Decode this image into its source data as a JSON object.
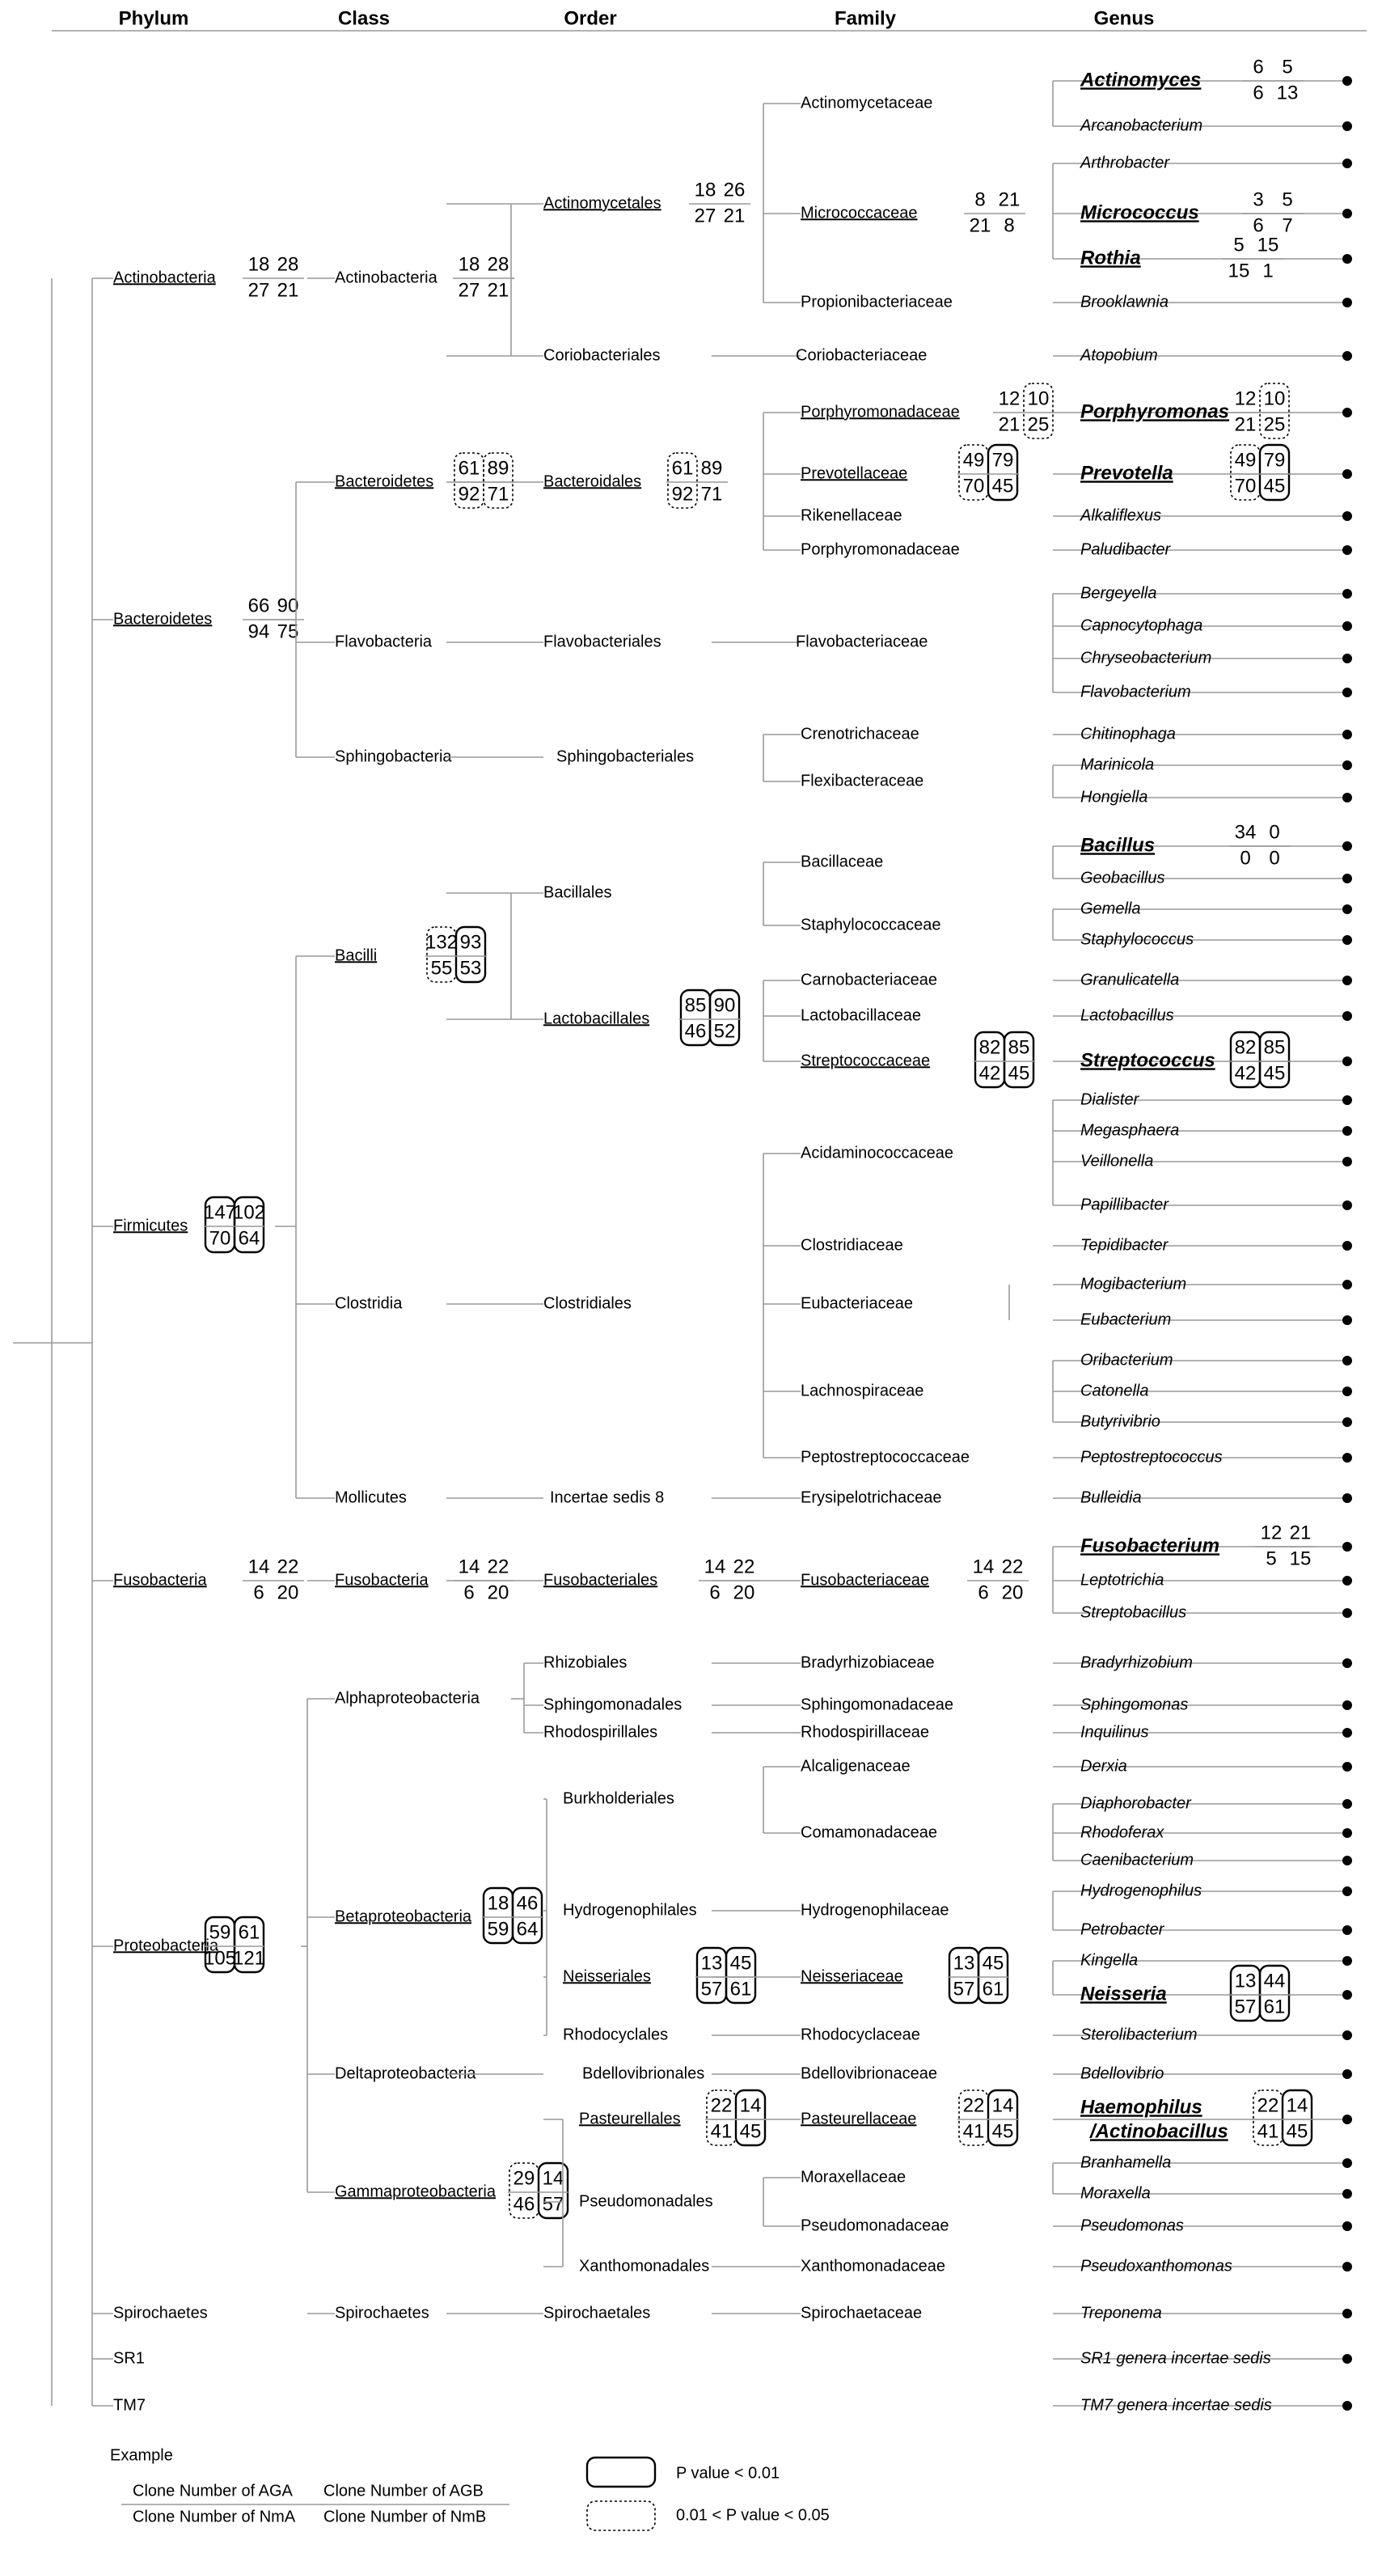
{
  "headers": [
    "Phylum",
    "Class",
    "Order",
    "Family",
    "Genus"
  ],
  "phyla": [
    {
      "key": "act",
      "label": "Actinobacteria",
      "ul": true,
      "nums": {
        "a": [
          "18",
          "27"
        ],
        "b": [
          "28",
          "21"
        ]
      }
    },
    {
      "key": "bac",
      "label": "Bacteroidetes",
      "ul": true,
      "nums": {
        "a": [
          "66",
          "94"
        ],
        "b": [
          "90",
          "75"
        ]
      }
    },
    {
      "key": "fir",
      "label": "Firmicutes",
      "ul": true,
      "nums": {
        "a": [
          "147",
          "70"
        ],
        "b": [
          "102",
          "64"
        ],
        "boxA": "solid",
        "boxB": "solid"
      }
    },
    {
      "key": "fus",
      "label": "Fusobacteria",
      "ul": true,
      "nums": {
        "a": [
          "14",
          "6"
        ],
        "b": [
          "22",
          "20"
        ]
      }
    },
    {
      "key": "pro",
      "label": "Proteobacteria",
      "ul": true,
      "nums": {
        "a": [
          "59",
          "105"
        ],
        "b": [
          "61",
          "121"
        ],
        "boxA": "solid",
        "boxB": "solid"
      }
    },
    {
      "key": "spi",
      "label": "Spirochaetes",
      "ul": false
    },
    {
      "key": "sr1",
      "label": "SR1",
      "ul": false
    },
    {
      "key": "tm7",
      "label": "TM7",
      "ul": false
    }
  ],
  "classes": [
    {
      "key": "c_act",
      "label": "Actinobacteria",
      "ul": false,
      "nums": {
        "a": [
          "18",
          "27"
        ],
        "b": [
          "28",
          "21"
        ]
      }
    },
    {
      "key": "c_bac",
      "label": "Bacteroidetes",
      "ul": true,
      "nums": {
        "a": [
          "61",
          "92"
        ],
        "b": [
          "89",
          "71"
        ],
        "boxA": "dashed",
        "boxB": "dashed"
      }
    },
    {
      "key": "c_fla",
      "label": "Flavobacteria",
      "ul": false
    },
    {
      "key": "c_sph",
      "label": "Sphingobacteria",
      "ul": false
    },
    {
      "key": "c_bci",
      "label": "Bacilli",
      "ul": true,
      "nums": {
        "a": [
          "132",
          "55"
        ],
        "b": [
          "93",
          "53"
        ],
        "boxA": "dashed",
        "boxB": "solid"
      }
    },
    {
      "key": "c_clo",
      "label": "Clostridia",
      "ul": false
    },
    {
      "key": "c_mol",
      "label": "Mollicutes",
      "ul": false
    },
    {
      "key": "c_fus",
      "label": "Fusobacteria",
      "ul": true,
      "nums": {
        "a": [
          "14",
          "6"
        ],
        "b": [
          "22",
          "20"
        ]
      }
    },
    {
      "key": "c_alp",
      "label": "Alphaproteobacteria",
      "ul": false
    },
    {
      "key": "c_bet",
      "label": "Betaproteobacteria",
      "ul": true,
      "nums": {
        "a": [
          "18",
          "59"
        ],
        "b": [
          "46",
          "64"
        ],
        "boxA": "solid",
        "boxB": "solid"
      }
    },
    {
      "key": "c_del",
      "label": "Deltaproteobacteria",
      "ul": false
    },
    {
      "key": "c_gam",
      "label": "Gammaproteobacteria",
      "ul": true,
      "nums": {
        "a": [
          "29",
          "46"
        ],
        "b": [
          "14",
          "57"
        ],
        "boxA": "dashed",
        "boxB": "solid"
      }
    },
    {
      "key": "c_spi",
      "label": "Spirochaetes",
      "ul": false
    }
  ],
  "orders": [
    {
      "key": "o_actm",
      "label": "Actinomycetales",
      "ul": true,
      "nums": {
        "a": [
          "18",
          "27"
        ],
        "b": [
          "26",
          "21"
        ]
      }
    },
    {
      "key": "o_cori",
      "label": "Coriobacteriales",
      "ul": false
    },
    {
      "key": "o_bact",
      "label": "Bacteroidales",
      "ul": true,
      "nums": {
        "a": [
          "61",
          "92"
        ],
        "b": [
          "89",
          "71"
        ],
        "boxA": "dashed"
      }
    },
    {
      "key": "o_flav",
      "label": "Flavobacteriales",
      "ul": false
    },
    {
      "key": "o_sphi",
      "label": "Sphingobacteriales",
      "ul": false
    },
    {
      "key": "o_baci",
      "label": "Bacillales",
      "ul": false
    },
    {
      "key": "o_lact",
      "label": "Lactobacillales",
      "ul": true,
      "nums": {
        "a": [
          "85",
          "46"
        ],
        "b": [
          "90",
          "52"
        ],
        "boxA": "solid",
        "boxB": "solid"
      }
    },
    {
      "key": "o_clos",
      "label": "Clostridiales",
      "ul": false
    },
    {
      "key": "o_ince",
      "label": "Incertae sedis 8",
      "ul": false
    },
    {
      "key": "o_fuso",
      "label": "Fusobacteriales",
      "ul": true,
      "nums": {
        "a": [
          "14",
          "6"
        ],
        "b": [
          "22",
          "20"
        ]
      }
    },
    {
      "key": "o_rhiz",
      "label": "Rhizobiales",
      "ul": false
    },
    {
      "key": "o_sphm",
      "label": "Sphingomonadales",
      "ul": false
    },
    {
      "key": "o_rhod",
      "label": "Rhodospirillales",
      "ul": false
    },
    {
      "key": "o_burk",
      "label": "Burkholderiales",
      "ul": false
    },
    {
      "key": "o_hydr",
      "label": "Hydrogenophilales",
      "ul": false
    },
    {
      "key": "o_neis",
      "label": "Neisseriales",
      "ul": true,
      "nums": {
        "a": [
          "13",
          "57"
        ],
        "b": [
          "45",
          "61"
        ],
        "boxA": "solid",
        "boxB": "solid"
      }
    },
    {
      "key": "o_rhoc",
      "label": "Rhodocyclales",
      "ul": false
    },
    {
      "key": "o_bdel",
      "label": "Bdellovibrionales",
      "ul": false
    },
    {
      "key": "o_past",
      "label": "Pasteurellales",
      "ul": true,
      "nums": {
        "a": [
          "22",
          "41"
        ],
        "b": [
          "14",
          "45"
        ],
        "boxA": "dashed",
        "boxB": "solid"
      }
    },
    {
      "key": "o_pseu",
      "label": "Pseudomonadales",
      "ul": false
    },
    {
      "key": "o_xant",
      "label": "Xanthomonadales",
      "ul": false
    },
    {
      "key": "o_spir",
      "label": "Spirochaetales",
      "ul": false
    }
  ],
  "families": [
    {
      "key": "f_actm",
      "label": "Actinomycetaceae",
      "ul": false
    },
    {
      "key": "f_micr",
      "label": "Micrococcaceae",
      "ul": true,
      "nums": {
        "a": [
          "8",
          "21"
        ],
        "b": [
          "21",
          "8"
        ]
      }
    },
    {
      "key": "f_prop",
      "label": "Propionibacteriaceae",
      "ul": false
    },
    {
      "key": "f_cori",
      "label": "Coriobacteriaceae",
      "ul": false
    },
    {
      "key": "f_porA",
      "label": "Porphyromonadaceae",
      "ul": true,
      "nums": {
        "a": [
          "12",
          "21"
        ],
        "b": [
          "10",
          "25"
        ],
        "boxB": "dashed"
      }
    },
    {
      "key": "f_prev",
      "label": "Prevotellaceae",
      "ul": true,
      "nums": {
        "a": [
          "49",
          "70"
        ],
        "b": [
          "79",
          "45"
        ],
        "boxA": "dashed",
        "boxB": "solid"
      }
    },
    {
      "key": "f_rike",
      "label": "Rikenellaceae",
      "ul": false
    },
    {
      "key": "f_porB",
      "label": "Porphyromonadaceae",
      "ul": false
    },
    {
      "key": "f_flav",
      "label": "Flavobacteriaceae",
      "ul": false
    },
    {
      "key": "f_cren",
      "label": "Crenotrichaceae",
      "ul": false
    },
    {
      "key": "f_flex",
      "label": "Flexibacteraceae",
      "ul": false
    },
    {
      "key": "f_baci",
      "label": "Bacillaceae",
      "ul": false
    },
    {
      "key": "f_stap",
      "label": "Staphylococcaceae",
      "ul": false
    },
    {
      "key": "f_carn",
      "label": "Carnobacteriaceae",
      "ul": false
    },
    {
      "key": "f_lact",
      "label": "Lactobacillaceae",
      "ul": false
    },
    {
      "key": "f_stre",
      "label": "Streptococcaceae",
      "ul": true,
      "nums": {
        "a": [
          "82",
          "42"
        ],
        "b": [
          "85",
          "45"
        ],
        "boxA": "solid",
        "boxB": "solid"
      }
    },
    {
      "key": "f_acid",
      "label": "Acidaminococcaceae",
      "ul": false
    },
    {
      "key": "f_clos",
      "label": "Clostridiaceae",
      "ul": false
    },
    {
      "key": "f_euba",
      "label": "Eubacteriaceae",
      "ul": false
    },
    {
      "key": "f_lach",
      "label": "Lachnospiraceae",
      "ul": false
    },
    {
      "key": "f_pept",
      "label": "Peptostreptococcaceae",
      "ul": false
    },
    {
      "key": "f_erys",
      "label": "Erysipelotrichaceae",
      "ul": false
    },
    {
      "key": "f_fuso",
      "label": "Fusobacteriaceae",
      "ul": true,
      "nums": {
        "a": [
          "14",
          "6"
        ],
        "b": [
          "22",
          "20"
        ]
      }
    },
    {
      "key": "f_brad",
      "label": "Bradyrhizobiaceae",
      "ul": false
    },
    {
      "key": "f_sphm",
      "label": "Sphingomonadaceae",
      "ul": false
    },
    {
      "key": "f_rhod",
      "label": "Rhodospirillaceae",
      "ul": false
    },
    {
      "key": "f_alca",
      "label": "Alcaligenaceae",
      "ul": false
    },
    {
      "key": "f_coma",
      "label": "Comamonadaceae",
      "ul": false
    },
    {
      "key": "f_hydr",
      "label": "Hydrogenophilaceae",
      "ul": false
    },
    {
      "key": "f_neis",
      "label": "Neisseriaceae",
      "ul": true,
      "nums": {
        "a": [
          "13",
          "57"
        ],
        "b": [
          "45",
          "61"
        ],
        "boxA": "solid",
        "boxB": "solid"
      }
    },
    {
      "key": "f_rhoc",
      "label": "Rhodocyclaceae",
      "ul": false
    },
    {
      "key": "f_bdel",
      "label": "Bdellovibrionaceae",
      "ul": false
    },
    {
      "key": "f_past",
      "label": "Pasteurellaceae",
      "ul": true,
      "nums": {
        "a": [
          "22",
          "41"
        ],
        "b": [
          "14",
          "45"
        ],
        "boxA": "dashed",
        "boxB": "solid"
      }
    },
    {
      "key": "f_mora",
      "label": "Moraxellaceae",
      "ul": false
    },
    {
      "key": "f_pseu",
      "label": "Pseudomonadaceae",
      "ul": false
    },
    {
      "key": "f_xant",
      "label": "Xanthomonadaceae",
      "ul": false
    },
    {
      "key": "f_spir",
      "label": "Spirochaetaceae",
      "ul": false
    }
  ],
  "genera": [
    {
      "label": "Actinomyces",
      "bold": true,
      "nums": {
        "a": [
          "6",
          "6"
        ],
        "b": [
          "5",
          "13"
        ]
      }
    },
    {
      "label": "Arcanobacterium"
    },
    {
      "label": "Arthrobacter"
    },
    {
      "label": "Micrococcus",
      "bold": true,
      "nums": {
        "a": [
          "3",
          "6"
        ],
        "b": [
          "5",
          "7"
        ]
      }
    },
    {
      "label": "Rothia",
      "bold": true,
      "nums": {
        "a": [
          "5",
          "15"
        ],
        "b": [
          "15",
          "1"
        ]
      }
    },
    {
      "label": "Brooklawnia"
    },
    {
      "label": "Atopobium"
    },
    {
      "label": "Porphyromonas",
      "bold": true,
      "nums": {
        "a": [
          "12",
          "21"
        ],
        "b": [
          "10",
          "25"
        ],
        "boxB": "dashed"
      }
    },
    {
      "label": "Prevotella",
      "bold": true,
      "nums": {
        "a": [
          "49",
          "70"
        ],
        "b": [
          "79",
          "45"
        ],
        "boxA": "dashed",
        "boxB": "solid"
      }
    },
    {
      "label": "Alkaliflexus"
    },
    {
      "label": "Paludibacter"
    },
    {
      "label": "Bergeyella"
    },
    {
      "label": "Capnocytophaga"
    },
    {
      "label": "Chryseobacterium"
    },
    {
      "label": "Flavobacterium"
    },
    {
      "label": "Chitinophaga"
    },
    {
      "label": "Marinicola"
    },
    {
      "label": "Hongiella"
    },
    {
      "label": "Bacillus",
      "bold": true,
      "nums": {
        "a": [
          "34",
          "0"
        ],
        "b": [
          "0",
          "0"
        ]
      }
    },
    {
      "label": "Geobacillus"
    },
    {
      "label": "Gemella"
    },
    {
      "label": "Staphylococcus"
    },
    {
      "label": "Granulicatella"
    },
    {
      "label": "Lactobacillus"
    },
    {
      "label": "Streptococcus",
      "bold": true,
      "nums": {
        "a": [
          "82",
          "42"
        ],
        "b": [
          "85",
          "45"
        ],
        "boxA": "solid",
        "boxB": "solid"
      }
    },
    {
      "label": "Dialister"
    },
    {
      "label": "Megasphaera"
    },
    {
      "label": "Veillonella"
    },
    {
      "label": "Papillibacter"
    },
    {
      "label": "Tepidibacter"
    },
    {
      "label": "Mogibacterium"
    },
    {
      "label": "Eubacterium"
    },
    {
      "label": "Oribacterium"
    },
    {
      "label": "Catonella"
    },
    {
      "label": "Butyrivibrio"
    },
    {
      "label": "Peptostreptococcus"
    },
    {
      "label": "Bulleidia"
    },
    {
      "label": "Fusobacterium",
      "bold": true,
      "nums": {
        "a": [
          "12",
          "5"
        ],
        "b": [
          "21",
          "15"
        ]
      }
    },
    {
      "label": "Leptotrichia"
    },
    {
      "label": "Streptobacillus"
    },
    {
      "label": "Bradyrhizobium"
    },
    {
      "label": "Sphingomonas"
    },
    {
      "label": "Inquilinus"
    },
    {
      "label": "Derxia"
    },
    {
      "label": "Diaphorobacter"
    },
    {
      "label": "Rhodoferax"
    },
    {
      "label": "Caenibacterium"
    },
    {
      "label": "Hydrogenophilus"
    },
    {
      "label": "Petrobacter"
    },
    {
      "label": "Kingella"
    },
    {
      "label": "Neisseria",
      "bold": true,
      "nums": {
        "a": [
          "13",
          "57"
        ],
        "b": [
          "44",
          "61"
        ],
        "boxA": "solid",
        "boxB": "solid"
      }
    },
    {
      "label": "Sterolibacterium"
    },
    {
      "label": "Bdellovibrio"
    },
    {
      "label": "Haemophilus",
      "label2": "/Actinobacillus",
      "bold": true,
      "nums": {
        "a": [
          "22",
          "41"
        ],
        "b": [
          "14",
          "45"
        ],
        "boxA": "dashed",
        "boxB": "solid"
      }
    },
    {
      "label": "Branhamella"
    },
    {
      "label": "Moraxella"
    },
    {
      "label": "Pseudomonas"
    },
    {
      "label": "Pseudoxanthomonas"
    },
    {
      "label": "Treponema"
    },
    {
      "label": "SR1 genera incertae sedis"
    },
    {
      "label": "TM7 genera incertae sedis"
    }
  ],
  "legend": {
    "title": "Example",
    "aga": "Clone Number of AGA",
    "agb": "Clone Number of AGB",
    "nma": "Clone Number of NmA",
    "nmb": "Clone Number of NmB",
    "solid_label": "P value < 0.01",
    "dashed_label": "0.01 < P value < 0.05"
  }
}
